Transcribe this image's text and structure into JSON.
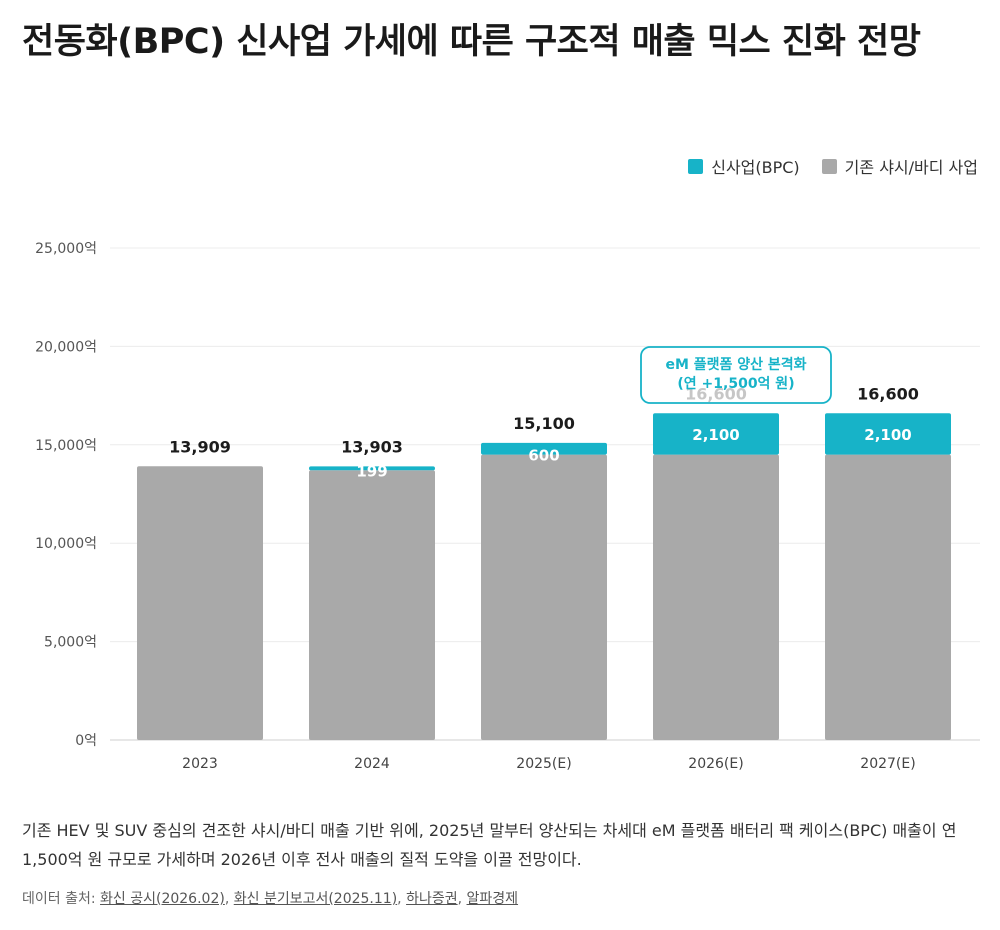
{
  "title": "전동화(BPC) 신사업 가세에 따른 구조적 매출 믹스 진화 전망",
  "legend": [
    {
      "label": "신사업(BPC)",
      "color": "#17b3c8"
    },
    {
      "label": "기존 샤시/바디 사업",
      "color": "#a9a9a9"
    }
  ],
  "chart_data": {
    "type": "bar",
    "stacked": true,
    "categories": [
      "2023",
      "2024",
      "2025(E)",
      "2026(E)",
      "2027(E)"
    ],
    "series": [
      {
        "name": "기존 샤시/바디 사업",
        "values": [
          13909,
          13704,
          14500,
          14500,
          14500
        ],
        "color": "#a9a9a9"
      },
      {
        "name": "신사업(BPC)",
        "values": [
          0,
          199,
          600,
          2100,
          2100
        ],
        "color": "#17b3c8"
      }
    ],
    "totals": [
      "13,909",
      "13,903",
      "15,100",
      "16,600",
      "16,600"
    ],
    "segment_labels": [
      "",
      "199",
      "600",
      "2,100",
      "2,100"
    ],
    "ylim": [
      0,
      25000
    ],
    "yticks": [
      0,
      5000,
      10000,
      15000,
      20000,
      25000
    ],
    "ytick_labels": [
      "0억",
      "5,000억",
      "10,000억",
      "15,000억",
      "20,000억",
      "25,000억"
    ],
    "grid": true,
    "legend_position": "top-right",
    "annotation": {
      "category": "2026(E)",
      "lines": [
        "eM 플랫폼 양산 본격화",
        "(연 +1,500억 원)"
      ]
    }
  },
  "description": "기존 HEV 및 SUV 중심의 견조한 샤시/바디 매출 기반 위에, 2025년 말부터 양산되는 차세대 eM 플랫폼 배터리 팩 케이스(BPC) 매출이 연 1,500억 원 규모로 가세하며 2026년 이후 전사 매출의 질적 도약을 이끌 전망이다.",
  "source": {
    "prefix": "데이터 출처:",
    "links": [
      "화신 공시(2026.02)",
      "화신 분기보고서(2025.11)",
      "하나증권",
      "알파경제"
    ]
  }
}
